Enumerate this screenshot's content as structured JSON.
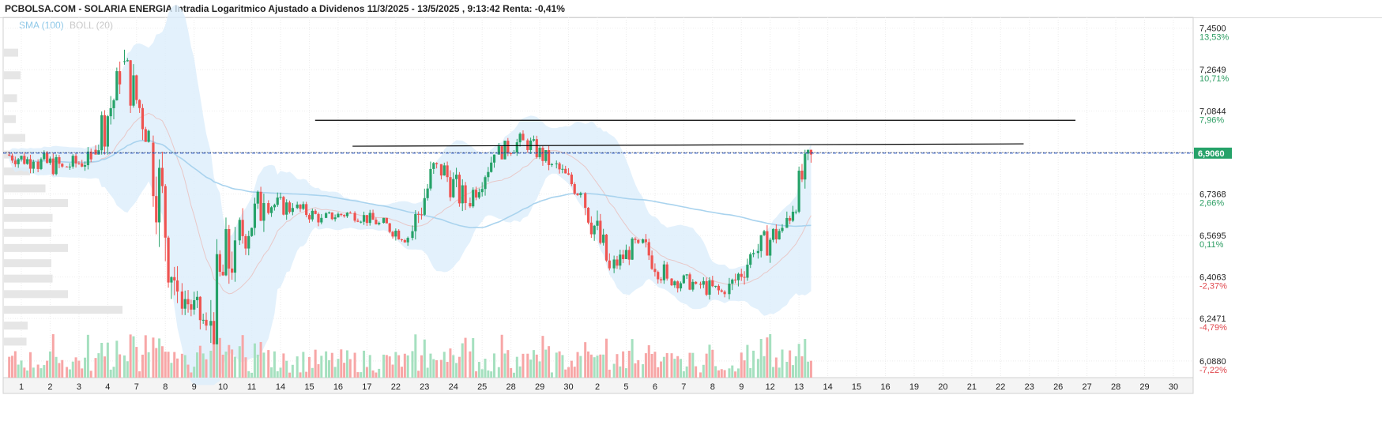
{
  "header": {
    "title": "PCBOLSA.COM - SOLARIA ENERGIA Intradia Logaritmico Ajustado a Dividenos 11/3/2025 - 13/5/2025 , 9:13:42 Renta: -0,41%"
  },
  "legend": {
    "sma": "SMA (100)",
    "boll": "BOLL (20)"
  },
  "colors": {
    "up": "#26a269",
    "down": "#ef5350",
    "band_fill": "#dceefb",
    "sma": "#a9d3ee",
    "boll_mid": "#e8c8c8",
    "current": "#2f5fd0",
    "price_tag": "#26a269",
    "volume_up": "#a5e0bf",
    "volume_down": "#f7a6a6",
    "profile": "#e6e6e6"
  },
  "chart_data": {
    "type": "candlestick",
    "y_scale": "log",
    "ylim": [
      6.05,
      7.47
    ],
    "y_ticks": [
      {
        "value": 7.45,
        "label": "7,4500",
        "pct": "13,53%"
      },
      {
        "value": 7.2649,
        "label": "7,2649",
        "pct": "10,71%"
      },
      {
        "value": 7.0844,
        "label": "7,0844",
        "pct": "7,96%"
      },
      {
        "value": 6.9084,
        "label": "6,9084",
        "pct": ""
      },
      {
        "value": 6.7368,
        "label": "6,7368",
        "pct": "2,66%"
      },
      {
        "value": 6.5695,
        "label": "6,5695",
        "pct": "0,11%"
      },
      {
        "value": 6.4063,
        "label": "6,4063",
        "pct": "-2,37%"
      },
      {
        "value": 6.2471,
        "label": "6,2471",
        "pct": "-4,79%"
      },
      {
        "value": 6.088,
        "label": "6,0880",
        "pct": "-7,22%"
      }
    ],
    "current_price": {
      "value": 6.906,
      "label": "6,9060"
    },
    "reference_line": 6.9084,
    "x_labels": [
      "1",
      "2",
      "3",
      "4",
      "7",
      "8",
      "9",
      "10",
      "11",
      "14",
      "15",
      "16",
      "17",
      "22",
      "23",
      "24",
      "25",
      "28",
      "29",
      "30",
      "2",
      "5",
      "6",
      "7",
      "8",
      "9",
      "12",
      "13",
      "14",
      "15",
      "16",
      "19",
      "20",
      "21",
      "22",
      "23",
      "26",
      "27",
      "28",
      "29",
      "30"
    ],
    "trend_lines": [
      {
        "from": {
          "session": 10.2,
          "price": 7.045
        },
        "to": {
          "session": 36.6,
          "price": 7.045
        }
      },
      {
        "from": {
          "session": 11.5,
          "price": 6.935
        },
        "to": {
          "session": 34.8,
          "price": 6.945
        }
      }
    ],
    "daily_ohlc": [
      [
        6.9,
        6.98,
        6.82,
        6.87
      ],
      [
        6.87,
        7.0,
        6.8,
        6.85
      ],
      [
        6.85,
        6.95,
        6.78,
        6.88
      ],
      [
        6.92,
        7.4,
        6.9,
        7.2
      ],
      [
        7.3,
        7.44,
        6.95,
        7.0
      ],
      [
        6.95,
        6.98,
        6.1,
        6.35
      ],
      [
        6.35,
        6.42,
        6.12,
        6.22
      ],
      [
        6.22,
        6.9,
        6.15,
        6.55
      ],
      [
        6.55,
        6.78,
        6.34,
        6.7
      ],
      [
        6.7,
        6.76,
        6.58,
        6.68
      ],
      [
        6.68,
        6.74,
        6.6,
        6.64
      ],
      [
        6.64,
        6.7,
        6.6,
        6.66
      ],
      [
        6.66,
        6.7,
        6.58,
        6.62
      ],
      [
        6.62,
        6.64,
        6.5,
        6.56
      ],
      [
        6.56,
        6.92,
        6.55,
        6.86
      ],
      [
        6.86,
        6.9,
        6.6,
        6.7
      ],
      [
        6.7,
        6.92,
        6.68,
        6.9
      ],
      [
        6.9,
        7.05,
        6.88,
        6.96
      ],
      [
        6.96,
        6.98,
        6.8,
        6.86
      ],
      [
        6.86,
        6.88,
        6.7,
        6.74
      ],
      [
        6.74,
        6.76,
        6.4,
        6.44
      ],
      [
        6.44,
        6.58,
        6.4,
        6.54
      ],
      [
        6.54,
        6.58,
        6.36,
        6.4
      ],
      [
        6.4,
        6.46,
        6.32,
        6.38
      ],
      [
        6.38,
        6.42,
        6.26,
        6.34
      ],
      [
        6.34,
        6.56,
        6.32,
        6.5
      ],
      [
        6.5,
        6.7,
        6.45,
        6.6
      ],
      [
        6.6,
        6.92,
        6.6,
        6.9
      ]
    ],
    "volume_profile": [
      {
        "price": 7.34,
        "size": 0.12
      },
      {
        "price": 7.24,
        "size": 0.14
      },
      {
        "price": 7.14,
        "size": 0.11
      },
      {
        "price": 7.05,
        "size": 0.1
      },
      {
        "price": 6.97,
        "size": 0.18
      },
      {
        "price": 6.9,
        "size": 0.25
      },
      {
        "price": 6.83,
        "size": 0.22
      },
      {
        "price": 6.76,
        "size": 0.35
      },
      {
        "price": 6.7,
        "size": 0.54
      },
      {
        "price": 6.64,
        "size": 0.41
      },
      {
        "price": 6.58,
        "size": 0.4
      },
      {
        "price": 6.52,
        "size": 0.54
      },
      {
        "price": 6.46,
        "size": 0.4
      },
      {
        "price": 6.4,
        "size": 0.41
      },
      {
        "price": 6.34,
        "size": 0.54
      },
      {
        "price": 6.28,
        "size": 1.0
      },
      {
        "price": 6.22,
        "size": 0.2
      },
      {
        "price": 6.16,
        "size": 0.19
      }
    ]
  }
}
